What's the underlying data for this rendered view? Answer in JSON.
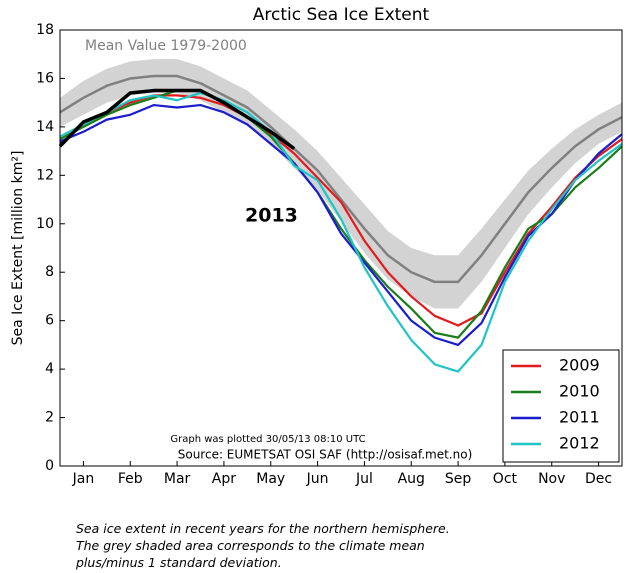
{
  "chart_data": {
    "type": "line",
    "title": "Arctic Sea Ice Extent",
    "y_label": "Sea Ice Extent [million km²]",
    "categories": [
      null,
      "Jan",
      null,
      "Feb",
      null,
      "Mar",
      null,
      "Apr",
      null,
      "May",
      null,
      "Jun",
      null,
      "Jul",
      null,
      "Aug",
      null,
      "Sep",
      null,
      "Oct",
      null,
      "Nov",
      null,
      "Dec",
      null
    ],
    "ylim": [
      0,
      18
    ],
    "yticks": [
      0,
      2,
      4,
      6,
      8,
      10,
      12,
      14,
      16,
      18
    ],
    "legend": "lower right",
    "mean": {
      "name": "Mean Value 1979-2000",
      "color": "#808080",
      "band_color": "#d3d3d3",
      "values": [
        14.6,
        15.2,
        15.7,
        16.0,
        16.1,
        16.1,
        15.8,
        15.3,
        14.8,
        14.0,
        13.1,
        12.2,
        11.0,
        9.8,
        8.7,
        8.0,
        7.6,
        7.6,
        8.7,
        10.0,
        11.3,
        12.3,
        13.2,
        13.9,
        14.4
      ],
      "upper": [
        15.2,
        15.9,
        16.4,
        16.7,
        16.8,
        16.8,
        16.5,
        16.0,
        15.5,
        14.7,
        13.9,
        13.0,
        11.9,
        10.8,
        9.7,
        9.0,
        8.7,
        8.7,
        9.8,
        11.0,
        12.2,
        13.1,
        13.9,
        14.5,
        15.0
      ],
      "lower": [
        14.0,
        14.5,
        15.0,
        15.3,
        15.4,
        15.4,
        15.1,
        14.6,
        14.1,
        13.3,
        12.3,
        11.4,
        10.1,
        8.8,
        7.7,
        7.0,
        6.5,
        6.5,
        7.6,
        9.0,
        10.4,
        11.5,
        12.5,
        13.3,
        13.8
      ]
    },
    "series": [
      {
        "name": "2009",
        "color": "#e3191c",
        "values": [
          13.3,
          14.1,
          14.6,
          15.0,
          15.3,
          15.3,
          15.2,
          14.9,
          14.4,
          13.7,
          12.9,
          11.9,
          10.9,
          9.3,
          8.0,
          7.0,
          6.2,
          5.8,
          6.3,
          8.0,
          9.6,
          10.7,
          11.9,
          12.8,
          13.5
        ]
      },
      {
        "name": "2010",
        "color": "#1a7d1a",
        "values": [
          13.5,
          14.0,
          14.5,
          14.9,
          15.2,
          15.5,
          15.5,
          15.0,
          14.4,
          13.6,
          12.5,
          11.3,
          9.8,
          8.5,
          7.4,
          6.5,
          5.5,
          5.3,
          6.4,
          8.2,
          9.8,
          10.4,
          11.5,
          12.3,
          13.2
        ]
      },
      {
        "name": "2011",
        "color": "#1c1ccf",
        "values": [
          13.4,
          13.8,
          14.3,
          14.5,
          14.9,
          14.8,
          14.9,
          14.6,
          14.1,
          13.3,
          12.5,
          11.3,
          9.6,
          8.4,
          7.2,
          6.0,
          5.3,
          5.0,
          5.9,
          7.8,
          9.5,
          10.4,
          11.8,
          12.9,
          13.7
        ]
      },
      {
        "name": "2012",
        "color": "#1fc4c4",
        "values": [
          13.6,
          14.1,
          14.6,
          15.1,
          15.3,
          15.1,
          15.4,
          15.1,
          14.6,
          13.8,
          12.4,
          11.8,
          10.2,
          8.2,
          6.6,
          5.2,
          4.2,
          3.9,
          5.0,
          7.6,
          9.3,
          10.6,
          11.8,
          12.6,
          13.3
        ]
      }
    ],
    "current": {
      "name": "2013",
      "color": "#000000",
      "values": [
        13.2,
        14.2,
        14.6,
        15.4,
        15.5,
        15.5,
        15.5,
        15.0,
        14.4,
        13.8,
        13.1,
        null,
        null,
        null,
        null,
        null,
        null,
        null,
        null,
        null,
        null,
        null,
        null,
        null,
        null
      ]
    },
    "annotations": [
      "Graph was plotted 30/05/13 08:10 UTC",
      "Source: EUMETSAT OSI SAF (http://osisaf.met.no)"
    ]
  },
  "caption": [
    "Sea ice extent in recent years for the northern hemisphere.",
    "The grey shaded area corresponds to the climate mean",
    "plus/minus 1 standard deviation."
  ]
}
